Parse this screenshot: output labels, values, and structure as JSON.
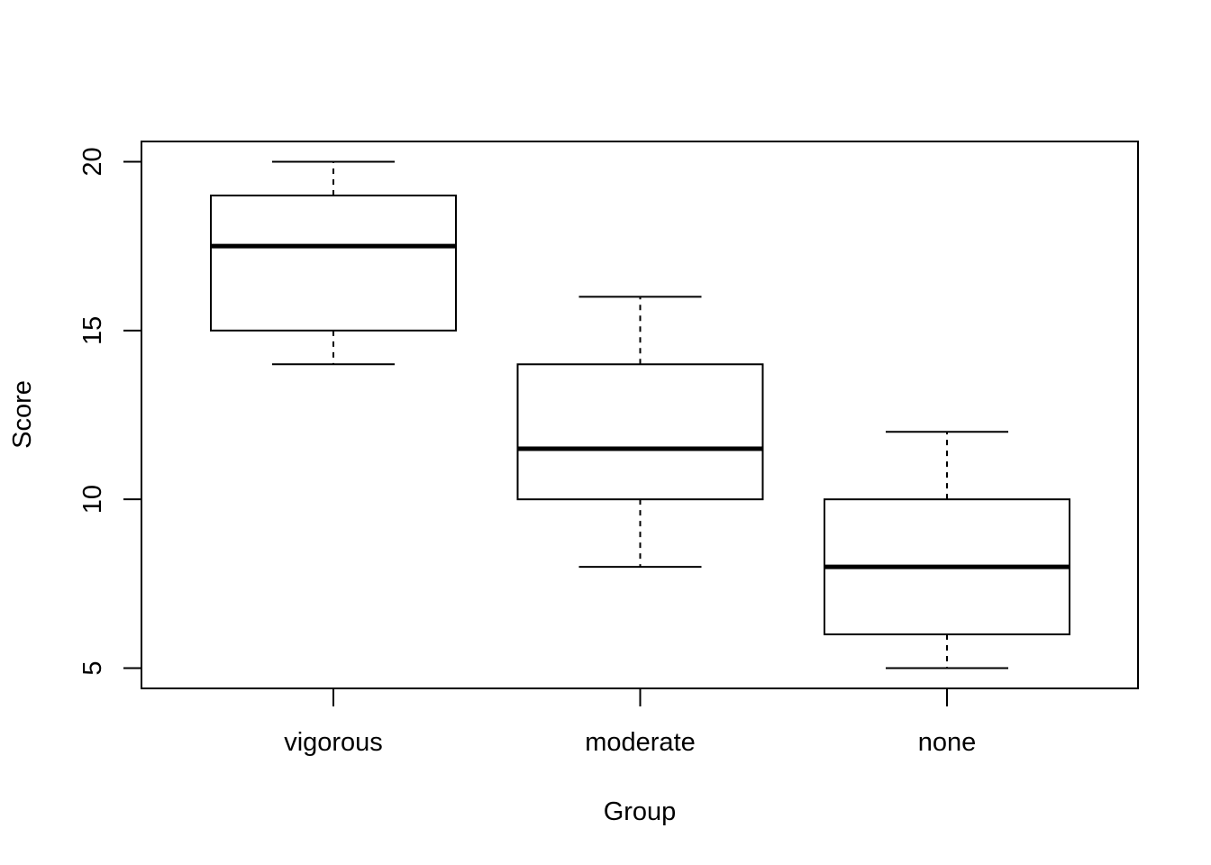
{
  "chart_data": {
    "type": "boxplot",
    "title": "",
    "xlabel": "Group",
    "ylabel": "Score",
    "categories": [
      "vigorous",
      "moderate",
      "none"
    ],
    "boxes": [
      {
        "category": "vigorous",
        "whisker_low": 14,
        "q1": 15,
        "median": 17.5,
        "q3": 19,
        "whisker_high": 20
      },
      {
        "category": "moderate",
        "whisker_low": 8,
        "q1": 10,
        "median": 11.5,
        "q3": 14,
        "whisker_high": 16
      },
      {
        "category": "none",
        "whisker_low": 5,
        "q1": 6,
        "median": 8,
        "q3": 10,
        "whisker_high": 12
      }
    ],
    "yticks": [
      5,
      10,
      15,
      20
    ],
    "ylim": [
      4.4,
      20.6
    ],
    "grid": false,
    "legend": "none"
  }
}
